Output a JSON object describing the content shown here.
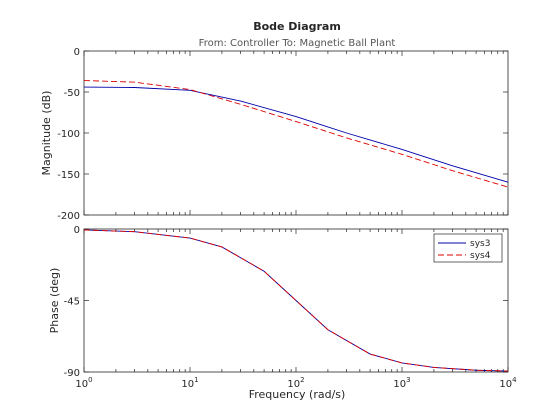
{
  "chart_data": {
    "type": "line",
    "title": "Bode Diagram",
    "subtitle": "From: Controller  To: Magnetic Ball Plant",
    "xlabel": "Frequency  (rad/s)",
    "xscale": "log",
    "xlim": [
      1,
      10000
    ],
    "xticks": [
      1,
      10,
      100,
      1000,
      10000
    ],
    "xtick_labels": [
      {
        "base": "10",
        "exp": "0"
      },
      {
        "base": "10",
        "exp": "1"
      },
      {
        "base": "10",
        "exp": "2"
      },
      {
        "base": "10",
        "exp": "3"
      },
      {
        "base": "10",
        "exp": "4"
      }
    ],
    "legend_placement": "top-right",
    "grid": false,
    "series_styles": [
      {
        "name": "sys3",
        "color": "#0000aa",
        "dash": "solid"
      },
      {
        "name": "sys4",
        "color": "#dd0000",
        "dash": "dashed"
      }
    ],
    "panels": [
      {
        "ylabel": "Magnitude (dB)",
        "ylim": [
          -200,
          0
        ],
        "yticks": [
          0,
          -50,
          -100,
          -150,
          -200
        ],
        "ytick_labels": [
          "0",
          "-50",
          "-100",
          "-150",
          "-200"
        ],
        "series": [
          {
            "name": "sys3",
            "x": [
              1,
              3,
              10,
              30,
              100,
              300,
              1000,
              3000,
              10000
            ],
            "y": [
              -44,
              -44.5,
              -48,
              -61,
              -80,
              -100,
              -120,
              -140,
              -160
            ]
          },
          {
            "name": "sys4",
            "x": [
              1,
              3,
              10,
              30,
              100,
              300,
              1000,
              3000,
              10000
            ],
            "y": [
              -36,
              -38,
              -47,
              -65,
              -86,
              -106,
              -126,
              -146,
              -166
            ]
          }
        ]
      },
      {
        "ylabel": "Phase (deg)",
        "ylim": [
          -90,
          0
        ],
        "yticks": [
          0,
          -45,
          -90
        ],
        "ytick_labels": [
          "0",
          "-45",
          "-90"
        ],
        "series": [
          {
            "name": "sys3",
            "x": [
              1,
              3,
              10,
              20,
              50,
              100,
              200,
              500,
              1000,
              2000,
              5000,
              10000
            ],
            "y": [
              -0.6,
              -1.7,
              -5.7,
              -11.3,
              -26.6,
              -45,
              -63.4,
              -78.7,
              -84.3,
              -87.1,
              -88.9,
              -89.4
            ]
          },
          {
            "name": "sys4",
            "x": [
              1,
              3,
              10,
              20,
              50,
              100,
              200,
              500,
              1000,
              2000,
              5000,
              10000
            ],
            "y": [
              -0.6,
              -1.7,
              -5.7,
              -11.3,
              -26.6,
              -45,
              -63.4,
              -78.7,
              -84.3,
              -87.1,
              -88.9,
              -89.4
            ]
          }
        ]
      }
    ]
  }
}
